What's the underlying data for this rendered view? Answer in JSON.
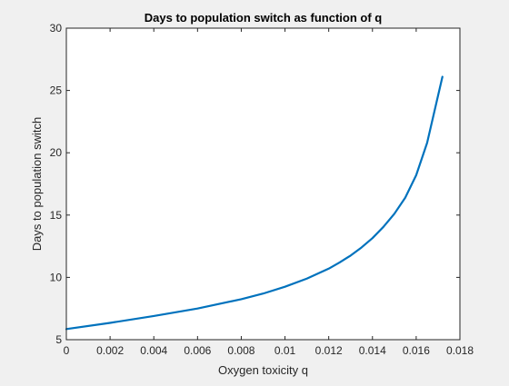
{
  "chart_data": {
    "type": "line",
    "title": "Days to population switch as function of q",
    "xlabel": "Oxygen toxicity q",
    "ylabel": "Days to population switch",
    "xlim": [
      0,
      0.018
    ],
    "ylim": [
      5,
      30
    ],
    "xticks": [
      0,
      0.002,
      0.004,
      0.006,
      0.008,
      0.01,
      0.012,
      0.014,
      0.016,
      0.018
    ],
    "xtick_labels": [
      "0",
      "0.002",
      "0.004",
      "0.006",
      "0.008",
      "0.01",
      "0.012",
      "0.014",
      "0.016",
      "0.018"
    ],
    "yticks": [
      5,
      10,
      15,
      20,
      25,
      30
    ],
    "ytick_labels": [
      "5",
      "10",
      "15",
      "20",
      "25",
      "30"
    ],
    "grid": false,
    "series": [
      {
        "color": "#0072BD",
        "x": [
          0,
          0.002,
          0.004,
          0.006,
          0.008,
          0.009,
          0.01,
          0.011,
          0.012,
          0.0125,
          0.013,
          0.0135,
          0.014,
          0.0145,
          0.015,
          0.0155,
          0.016,
          0.0165,
          0.0172
        ],
        "y": [
          5.85,
          6.35,
          6.9,
          7.5,
          8.25,
          8.7,
          9.25,
          9.9,
          10.7,
          11.2,
          11.75,
          12.4,
          13.15,
          14.05,
          15.1,
          16.4,
          18.2,
          20.8,
          26.1
        ]
      }
    ]
  }
}
